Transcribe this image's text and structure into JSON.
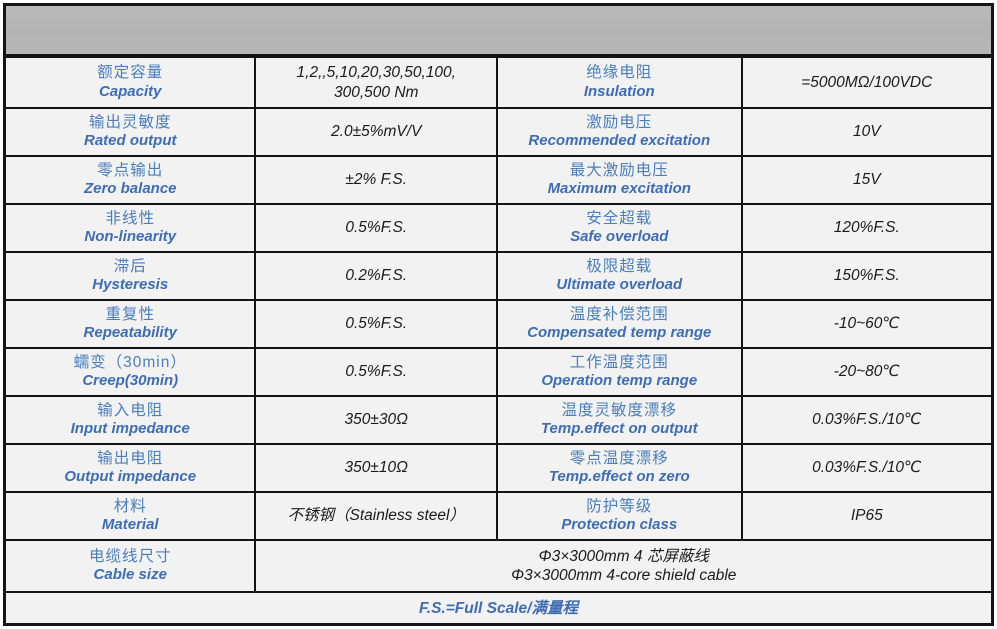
{
  "colors": {
    "accent_blue_zh": "#4a7ebc",
    "accent_blue_en": "#3e6db5",
    "header_gray": "#b5b5b5",
    "cell_background": "#f2f2f2",
    "border_black": "#141414",
    "value_black": "#1b1b1b"
  },
  "rows": [
    {
      "lzh": "额定容量",
      "len": "Capacity",
      "lval": "1,2,,5,10,20,30,50,100,\n300,500 Nm",
      "rzh": "绝缘电阻",
      "ren": "Insulation",
      "rval": "=5000MΩ/100VDC"
    },
    {
      "lzh": "输出灵敏度",
      "len": "Rated output",
      "lval": "2.0±5%mV/V",
      "rzh": "激励电压",
      "ren": "Recommended excitation",
      "rval": "10V"
    },
    {
      "lzh": "零点输出",
      "len": "Zero balance",
      "lval": "±2% F.S.",
      "rzh": "最大激励电压",
      "ren": "Maximum excitation",
      "rval": "15V"
    },
    {
      "lzh": "非线性",
      "len": "Non-linearity",
      "lval": "0.5%F.S.",
      "rzh": "安全超载",
      "ren": "Safe overload",
      "rval": "120%F.S."
    },
    {
      "lzh": "滞后",
      "len": "Hysteresis",
      "lval": "0.2%F.S.",
      "rzh": "极限超载",
      "ren": "Ultimate overload",
      "rval": "150%F.S."
    },
    {
      "lzh": "重复性",
      "len": "Repeatability",
      "lval": "0.5%F.S.",
      "rzh": "温度补偿范围",
      "ren": "Compensated temp range",
      "rval": "-10~60℃"
    },
    {
      "lzh": "蠕变（30min）",
      "len": "Creep(30min)",
      "lval": "0.5%F.S.",
      "rzh": "工作温度范围",
      "ren": "Operation temp range",
      "rval": "-20~80℃"
    },
    {
      "lzh": "输入电阻",
      "len": "Input impedance",
      "lval": "350±30Ω",
      "rzh": "温度灵敏度漂移",
      "ren": "Temp.effect on output",
      "rval": "0.03%F.S./10℃"
    },
    {
      "lzh": "输出电阻",
      "len": "Output impedance",
      "lval": "350±10Ω",
      "rzh": "零点温度漂移",
      "ren": "Temp.effect on zero",
      "rval": "0.03%F.S./10℃"
    },
    {
      "lzh": "材料",
      "len": "Material",
      "lval": "不锈钢（Stainless steel）",
      "rzh": "防护等级",
      "ren": "Protection class",
      "rval": "IP65"
    }
  ],
  "cable": {
    "zh": "电缆线尺寸",
    "en": "Cable size",
    "value": "Φ3×3000mm 4 芯屏蔽线\nΦ3×3000mm 4-core shield cable"
  },
  "footer": {
    "text": "F.S.=Full Scale/满量程"
  }
}
